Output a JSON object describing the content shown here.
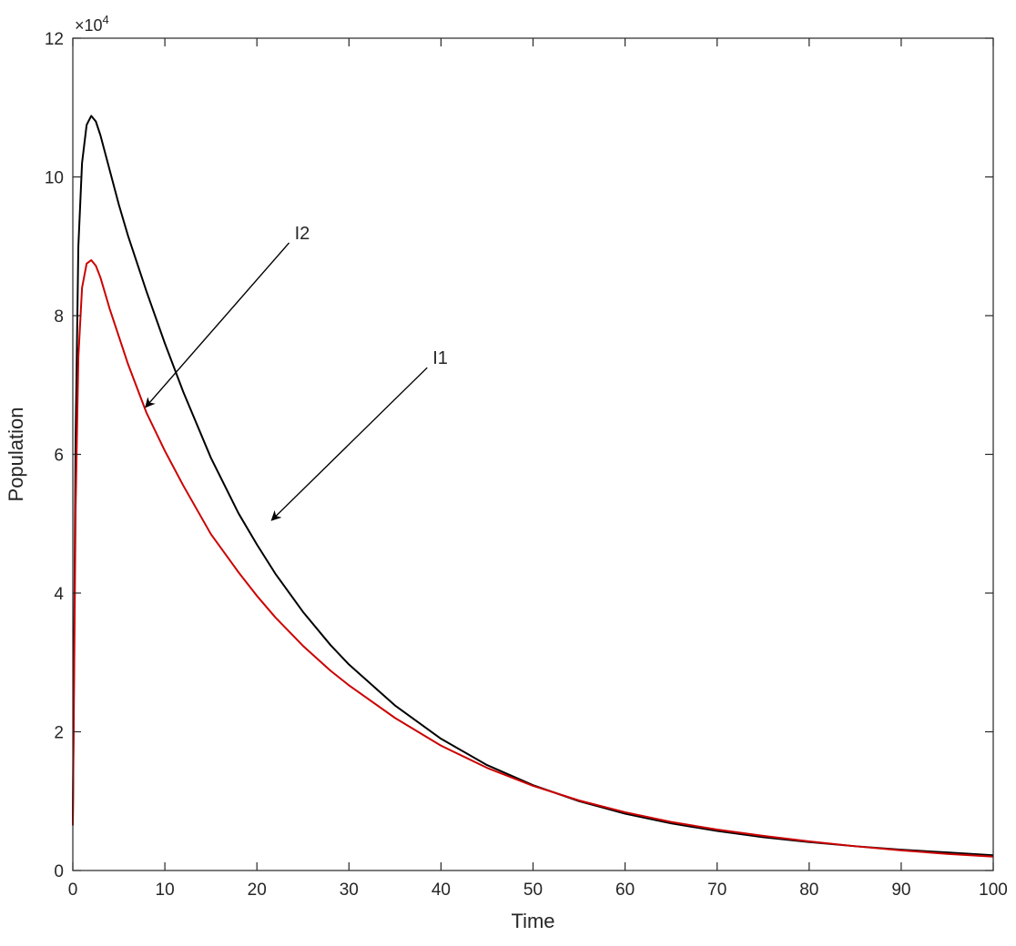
{
  "chart_data": {
    "type": "line",
    "xlabel": "Time",
    "ylabel": "Population",
    "xlim": [
      0,
      100
    ],
    "ylim": [
      0,
      120000
    ],
    "x_ticks": [
      0,
      10,
      20,
      30,
      40,
      50,
      60,
      70,
      80,
      90,
      100
    ],
    "x_tick_labels": [
      "0",
      "10",
      "20",
      "30",
      "40",
      "50",
      "60",
      "70",
      "80",
      "90",
      "100"
    ],
    "y_ticks": [
      0,
      20000,
      40000,
      60000,
      80000,
      100000,
      120000
    ],
    "y_tick_labels": [
      "0",
      "2",
      "4",
      "6",
      "8",
      "10",
      "12"
    ],
    "y_exponent_label": "×10",
    "y_exponent_power": "4",
    "grid": false,
    "box": true,
    "series": [
      {
        "name": "I1",
        "color": "#000000",
        "x": [
          0,
          0.3,
          0.6,
          1,
          1.5,
          2,
          2.5,
          3,
          4,
          5,
          6,
          8,
          10,
          12,
          15,
          18,
          20,
          22,
          25,
          28,
          30,
          35,
          40,
          45,
          50,
          55,
          60,
          65,
          70,
          75,
          80,
          85,
          90,
          95,
          100
        ],
        "y": [
          7000,
          62000,
          90000,
          102000,
          107500,
          108800,
          108000,
          106000,
          101000,
          96000,
          91500,
          83500,
          76000,
          69000,
          59500,
          51500,
          47000,
          42800,
          37300,
          32500,
          29700,
          23800,
          19000,
          15200,
          12300,
          10000,
          8200,
          6800,
          5700,
          4800,
          4100,
          3500,
          3000,
          2600,
          2200
        ]
      },
      {
        "name": "I2",
        "color": "#cc0000",
        "x": [
          0,
          0.3,
          0.6,
          1,
          1.5,
          2,
          2.5,
          3,
          4,
          5,
          6,
          8,
          10,
          12,
          15,
          18,
          20,
          22,
          25,
          28,
          30,
          35,
          40,
          45,
          50,
          55,
          60,
          65,
          70,
          75,
          80,
          85,
          90,
          95,
          100
        ],
        "y": [
          6500,
          52000,
          74000,
          84000,
          87500,
          88000,
          87200,
          85500,
          81000,
          77000,
          73000,
          66000,
          60500,
          55500,
          48500,
          43000,
          39600,
          36500,
          32400,
          28800,
          26700,
          22000,
          18000,
          14800,
          12200,
          10100,
          8400,
          7000,
          5900,
          5000,
          4200,
          3500,
          2900,
          2400,
          2000
        ]
      }
    ],
    "annotations": [
      {
        "text": "I2",
        "from": [
          23.5,
          90500
        ],
        "to": [
          7.9,
          66800
        ]
      },
      {
        "text": "I1",
        "from": [
          38.5,
          72500
        ],
        "to": [
          21.6,
          50500
        ]
      }
    ]
  }
}
